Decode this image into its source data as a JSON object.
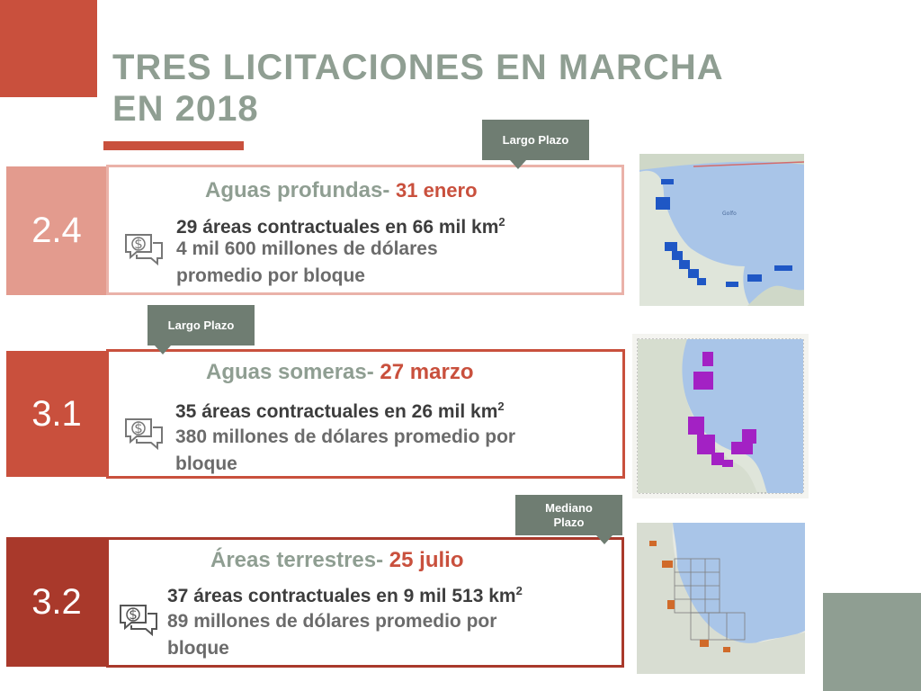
{
  "title_line1": "TRES LICITACIONES EN MARCHA",
  "title_line2": "EN 2018",
  "rounds": [
    {
      "number": "2.4",
      "name": "Aguas profundas-",
      "date": "31 enero",
      "areas": "29 áreas contractuales en 66 mil km",
      "investment_line1": "4 mil 600 millones de dólares",
      "investment_line2": "promedio por bloque",
      "tag": "Largo Plazo"
    },
    {
      "number": "3.1",
      "name": "Aguas someras-",
      "date": "27 marzo",
      "areas": "35 áreas contractuales en 26 mil km",
      "investment_line1": "380 millones de dólares promedio por",
      "investment_line2": "bloque",
      "tag": "Largo Plazo"
    },
    {
      "number": "3.2",
      "name": "Áreas terrestres-",
      "date": "25 julio",
      "areas": "37 áreas contractuales en 9 mil 513 km",
      "investment_line1": "89 millones de dólares promedio por",
      "investment_line2": "bloque",
      "tag_line1": "Mediano",
      "tag_line2": "Plazo"
    }
  ],
  "superscript": "2",
  "colors": {
    "accent": "#c9503d",
    "sage": "#8f9e92",
    "block1": "#e39b8e",
    "block2": "#c9503d",
    "block3": "#a9392b",
    "tag": "#6f7d72",
    "water": "#a9c5e8"
  }
}
